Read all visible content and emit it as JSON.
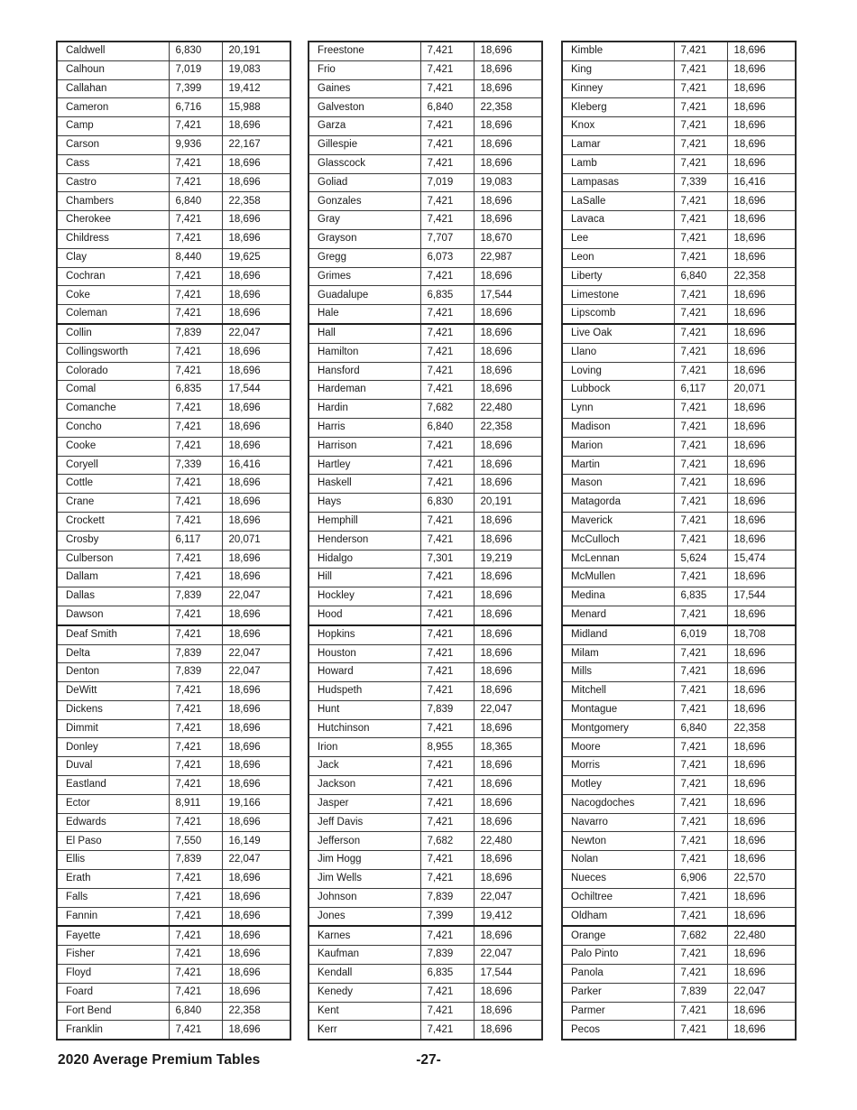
{
  "footer": {
    "title": "2020 Average Premium Tables",
    "page_number": "-27-"
  },
  "colors": {
    "text": "#1a1a1a",
    "cell_border": "#3c3c3c",
    "heavy_border": "#1f1f1f",
    "background": "#ffffff"
  },
  "tables": [
    {
      "rows": [
        [
          "Caldwell",
          "6,830",
          "20,191"
        ],
        [
          "Calhoun",
          "7,019",
          "19,083"
        ],
        [
          "Callahan",
          "7,399",
          "19,412"
        ],
        [
          "Cameron",
          "6,716",
          "15,988"
        ],
        [
          "Camp",
          "7,421",
          "18,696"
        ],
        [
          "Carson",
          "9,936",
          "22,167"
        ],
        [
          "Cass",
          "7,421",
          "18,696"
        ],
        [
          "Castro",
          "7,421",
          "18,696"
        ],
        [
          "Chambers",
          "6,840",
          "22,358"
        ],
        [
          "Cherokee",
          "7,421",
          "18,696"
        ],
        [
          "Childress",
          "7,421",
          "18,696"
        ],
        [
          "Clay",
          "8,440",
          "19,625"
        ],
        [
          "Cochran",
          "7,421",
          "18,696"
        ],
        [
          "Coke",
          "7,421",
          "18,696"
        ],
        [
          "Coleman",
          "7,421",
          "18,696"
        ],
        [
          "Collin",
          "7,839",
          "22,047"
        ],
        [
          "Collingsworth",
          "7,421",
          "18,696"
        ],
        [
          "Colorado",
          "7,421",
          "18,696"
        ],
        [
          "Comal",
          "6,835",
          "17,544"
        ],
        [
          "Comanche",
          "7,421",
          "18,696"
        ],
        [
          "Concho",
          "7,421",
          "18,696"
        ],
        [
          "Cooke",
          "7,421",
          "18,696"
        ],
        [
          "Coryell",
          "7,339",
          "16,416"
        ],
        [
          "Cottle",
          "7,421",
          "18,696"
        ],
        [
          "Crane",
          "7,421",
          "18,696"
        ],
        [
          "Crockett",
          "7,421",
          "18,696"
        ],
        [
          "Crosby",
          "6,117",
          "20,071"
        ],
        [
          "Culberson",
          "7,421",
          "18,696"
        ],
        [
          "Dallam",
          "7,421",
          "18,696"
        ],
        [
          "Dallas",
          "7,839",
          "22,047"
        ],
        [
          "Dawson",
          "7,421",
          "18,696"
        ],
        [
          "Deaf Smith",
          "7,421",
          "18,696"
        ],
        [
          "Delta",
          "7,839",
          "22,047"
        ],
        [
          "Denton",
          "7,839",
          "22,047"
        ],
        [
          "DeWitt",
          "7,421",
          "18,696"
        ],
        [
          "Dickens",
          "7,421",
          "18,696"
        ],
        [
          "Dimmit",
          "7,421",
          "18,696"
        ],
        [
          "Donley",
          "7,421",
          "18,696"
        ],
        [
          "Duval",
          "7,421",
          "18,696"
        ],
        [
          "Eastland",
          "7,421",
          "18,696"
        ],
        [
          "Ector",
          "8,911",
          "19,166"
        ],
        [
          "Edwards",
          "7,421",
          "18,696"
        ],
        [
          "El Paso",
          "7,550",
          "16,149"
        ],
        [
          "Ellis",
          "7,839",
          "22,047"
        ],
        [
          "Erath",
          "7,421",
          "18,696"
        ],
        [
          "Falls",
          "7,421",
          "18,696"
        ],
        [
          "Fannin",
          "7,421",
          "18,696"
        ],
        [
          "Fayette",
          "7,421",
          "18,696"
        ],
        [
          "Fisher",
          "7,421",
          "18,696"
        ],
        [
          "Floyd",
          "7,421",
          "18,696"
        ],
        [
          "Foard",
          "7,421",
          "18,696"
        ],
        [
          "Fort Bend",
          "6,840",
          "22,358"
        ],
        [
          "Franklin",
          "7,421",
          "18,696"
        ]
      ]
    },
    {
      "rows": [
        [
          "Freestone",
          "7,421",
          "18,696"
        ],
        [
          "Frio",
          "7,421",
          "18,696"
        ],
        [
          "Gaines",
          "7,421",
          "18,696"
        ],
        [
          "Galveston",
          "6,840",
          "22,358"
        ],
        [
          "Garza",
          "7,421",
          "18,696"
        ],
        [
          "Gillespie",
          "7,421",
          "18,696"
        ],
        [
          "Glasscock",
          "7,421",
          "18,696"
        ],
        [
          "Goliad",
          "7,019",
          "19,083"
        ],
        [
          "Gonzales",
          "7,421",
          "18,696"
        ],
        [
          "Gray",
          "7,421",
          "18,696"
        ],
        [
          "Grayson",
          "7,707",
          "18,670"
        ],
        [
          "Gregg",
          "6,073",
          "22,987"
        ],
        [
          "Grimes",
          "7,421",
          "18,696"
        ],
        [
          "Guadalupe",
          "6,835",
          "17,544"
        ],
        [
          "Hale",
          "7,421",
          "18,696"
        ],
        [
          "Hall",
          "7,421",
          "18,696"
        ],
        [
          "Hamilton",
          "7,421",
          "18,696"
        ],
        [
          "Hansford",
          "7,421",
          "18,696"
        ],
        [
          "Hardeman",
          "7,421",
          "18,696"
        ],
        [
          "Hardin",
          "7,682",
          "22,480"
        ],
        [
          "Harris",
          "6,840",
          "22,358"
        ],
        [
          "Harrison",
          "7,421",
          "18,696"
        ],
        [
          "Hartley",
          "7,421",
          "18,696"
        ],
        [
          "Haskell",
          "7,421",
          "18,696"
        ],
        [
          "Hays",
          "6,830",
          "20,191"
        ],
        [
          "Hemphill",
          "7,421",
          "18,696"
        ],
        [
          "Henderson",
          "7,421",
          "18,696"
        ],
        [
          "Hidalgo",
          "7,301",
          "19,219"
        ],
        [
          "Hill",
          "7,421",
          "18,696"
        ],
        [
          "Hockley",
          "7,421",
          "18,696"
        ],
        [
          "Hood",
          "7,421",
          "18,696"
        ],
        [
          "Hopkins",
          "7,421",
          "18,696"
        ],
        [
          "Houston",
          "7,421",
          "18,696"
        ],
        [
          "Howard",
          "7,421",
          "18,696"
        ],
        [
          "Hudspeth",
          "7,421",
          "18,696"
        ],
        [
          "Hunt",
          "7,839",
          "22,047"
        ],
        [
          "Hutchinson",
          "7,421",
          "18,696"
        ],
        [
          "Irion",
          "8,955",
          "18,365"
        ],
        [
          "Jack",
          "7,421",
          "18,696"
        ],
        [
          "Jackson",
          "7,421",
          "18,696"
        ],
        [
          "Jasper",
          "7,421",
          "18,696"
        ],
        [
          "Jeff Davis",
          "7,421",
          "18,696"
        ],
        [
          "Jefferson",
          "7,682",
          "22,480"
        ],
        [
          "Jim Hogg",
          "7,421",
          "18,696"
        ],
        [
          "Jim Wells",
          "7,421",
          "18,696"
        ],
        [
          "Johnson",
          "7,839",
          "22,047"
        ],
        [
          "Jones",
          "7,399",
          "19,412"
        ],
        [
          "Karnes",
          "7,421",
          "18,696"
        ],
        [
          "Kaufman",
          "7,839",
          "22,047"
        ],
        [
          "Kendall",
          "6,835",
          "17,544"
        ],
        [
          "Kenedy",
          "7,421",
          "18,696"
        ],
        [
          "Kent",
          "7,421",
          "18,696"
        ],
        [
          "Kerr",
          "7,421",
          "18,696"
        ]
      ]
    },
    {
      "rows": [
        [
          "Kimble",
          "7,421",
          "18,696"
        ],
        [
          "King",
          "7,421",
          "18,696"
        ],
        [
          "Kinney",
          "7,421",
          "18,696"
        ],
        [
          "Kleberg",
          "7,421",
          "18,696"
        ],
        [
          "Knox",
          "7,421",
          "18,696"
        ],
        [
          "Lamar",
          "7,421",
          "18,696"
        ],
        [
          "Lamb",
          "7,421",
          "18,696"
        ],
        [
          "Lampasas",
          "7,339",
          "16,416"
        ],
        [
          "LaSalle",
          "7,421",
          "18,696"
        ],
        [
          "Lavaca",
          "7,421",
          "18,696"
        ],
        [
          "Lee",
          "7,421",
          "18,696"
        ],
        [
          "Leon",
          "7,421",
          "18,696"
        ],
        [
          "Liberty",
          "6,840",
          "22,358"
        ],
        [
          "Limestone",
          "7,421",
          "18,696"
        ],
        [
          "Lipscomb",
          "7,421",
          "18,696"
        ],
        [
          "Live Oak",
          "7,421",
          "18,696"
        ],
        [
          "Llano",
          "7,421",
          "18,696"
        ],
        [
          "Loving",
          "7,421",
          "18,696"
        ],
        [
          "Lubbock",
          "6,117",
          "20,071"
        ],
        [
          "Lynn",
          "7,421",
          "18,696"
        ],
        [
          "Madison",
          "7,421",
          "18,696"
        ],
        [
          "Marion",
          "7,421",
          "18,696"
        ],
        [
          "Martin",
          "7,421",
          "18,696"
        ],
        [
          "Mason",
          "7,421",
          "18,696"
        ],
        [
          "Matagorda",
          "7,421",
          "18,696"
        ],
        [
          "Maverick",
          "7,421",
          "18,696"
        ],
        [
          "McCulloch",
          "7,421",
          "18,696"
        ],
        [
          "McLennan",
          "5,624",
          "15,474"
        ],
        [
          "McMullen",
          "7,421",
          "18,696"
        ],
        [
          "Medina",
          "6,835",
          "17,544"
        ],
        [
          "Menard",
          "7,421",
          "18,696"
        ],
        [
          "Midland",
          "6,019",
          "18,708"
        ],
        [
          "Milam",
          "7,421",
          "18,696"
        ],
        [
          "Mills",
          "7,421",
          "18,696"
        ],
        [
          "Mitchell",
          "7,421",
          "18,696"
        ],
        [
          "Montague",
          "7,421",
          "18,696"
        ],
        [
          "Montgomery",
          "6,840",
          "22,358"
        ],
        [
          "Moore",
          "7,421",
          "18,696"
        ],
        [
          "Morris",
          "7,421",
          "18,696"
        ],
        [
          "Motley",
          "7,421",
          "18,696"
        ],
        [
          "Nacogdoches",
          "7,421",
          "18,696"
        ],
        [
          "Navarro",
          "7,421",
          "18,696"
        ],
        [
          "Newton",
          "7,421",
          "18,696"
        ],
        [
          "Nolan",
          "7,421",
          "18,696"
        ],
        [
          "Nueces",
          "6,906",
          "22,570"
        ],
        [
          "Ochiltree",
          "7,421",
          "18,696"
        ],
        [
          "Oldham",
          "7,421",
          "18,696"
        ],
        [
          "Orange",
          "7,682",
          "22,480"
        ],
        [
          "Palo Pinto",
          "7,421",
          "18,696"
        ],
        [
          "Panola",
          "7,421",
          "18,696"
        ],
        [
          "Parker",
          "7,839",
          "22,047"
        ],
        [
          "Parmer",
          "7,421",
          "18,696"
        ],
        [
          "Pecos",
          "7,421",
          "18,696"
        ]
      ]
    }
  ]
}
